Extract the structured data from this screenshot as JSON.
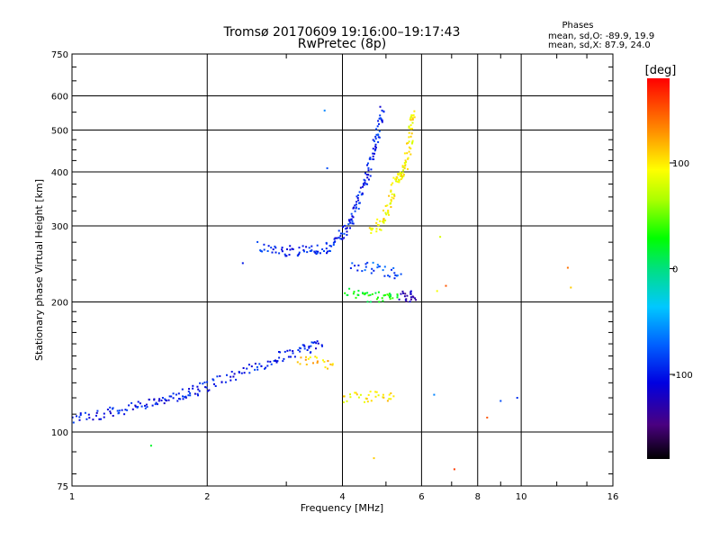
{
  "chart_data": {
    "type": "scatter",
    "title": "Tromsø 20170609  19:16:00–19:17:43",
    "subtitle": "RwPretec (8p)",
    "xlabel": "Frequency [MHz]",
    "ylabel": "Stationary phase Virtual Height [km]",
    "x_scale": "log",
    "y_scale": "log",
    "xlim": [
      1,
      16
    ],
    "ylim": [
      75,
      750
    ],
    "x_ticks": [
      1,
      2,
      4,
      6,
      8,
      10,
      16
    ],
    "x_grid": [
      1,
      2,
      4,
      6,
      8,
      10
    ],
    "y_ticks": [
      75,
      100,
      200,
      300,
      400,
      500,
      600,
      750
    ],
    "grid": true,
    "stats": {
      "title": "Phases",
      "line_o": "mean, sd,O: -89.9, 19.9",
      "line_x": "mean, sd,X:  87.9, 24.0"
    },
    "colorbar": {
      "label": "[deg]",
      "range": [
        -180,
        180
      ],
      "ticks": [
        100,
        0,
        -100
      ],
      "placement": "right"
    },
    "traces": [
      {
        "points": [
          [
            1.0,
            107
          ],
          [
            1.1,
            109
          ],
          [
            1.2,
            111
          ],
          [
            1.3,
            113
          ],
          [
            1.4,
            115
          ],
          [
            1.5,
            117
          ],
          [
            1.6,
            119
          ],
          [
            1.7,
            121
          ],
          [
            1.8,
            123
          ],
          [
            1.9,
            125
          ],
          [
            2.0,
            128
          ],
          [
            2.2,
            133
          ],
          [
            2.4,
            137
          ],
          [
            2.6,
            142
          ],
          [
            2.8,
            147
          ],
          [
            3.0,
            151
          ],
          [
            3.2,
            154
          ],
          [
            3.4,
            157
          ],
          [
            3.6,
            159
          ]
        ],
        "phase": -100
      },
      {
        "points": [
          [
            2.6,
            268
          ],
          [
            2.8,
            264
          ],
          [
            3.0,
            262
          ],
          [
            3.2,
            262
          ],
          [
            3.4,
            263
          ],
          [
            3.6,
            266
          ],
          [
            3.8,
            271
          ],
          [
            3.95,
            281
          ],
          [
            4.05,
            292
          ],
          [
            4.15,
            306
          ],
          [
            4.25,
            322
          ],
          [
            4.35,
            342
          ],
          [
            4.45,
            365
          ],
          [
            4.55,
            390
          ],
          [
            4.62,
            420
          ],
          [
            4.7,
            450
          ],
          [
            4.78,
            480
          ],
          [
            4.85,
            520
          ],
          [
            4.9,
            555
          ]
        ],
        "phase": -95
      },
      {
        "points": [
          [
            4.0,
            120
          ],
          [
            4.4,
            120
          ],
          [
            4.8,
            121
          ],
          [
            5.2,
            121
          ]
        ],
        "phase": 100
      },
      {
        "points": [
          [
            4.6,
            296
          ],
          [
            4.8,
            300
          ],
          [
            4.95,
            310
          ],
          [
            5.05,
            330
          ],
          [
            5.15,
            355
          ],
          [
            5.25,
            380
          ],
          [
            5.35,
            390
          ],
          [
            5.45,
            400
          ],
          [
            5.55,
            420
          ],
          [
            5.62,
            455
          ],
          [
            5.68,
            490
          ],
          [
            5.72,
            520
          ],
          [
            5.74,
            540
          ]
        ],
        "phase": 95
      },
      {
        "points": [
          [
            4.1,
            210
          ],
          [
            4.4,
            206
          ],
          [
            4.7,
            205
          ],
          [
            5.0,
            205
          ],
          [
            5.3,
            205
          ]
        ],
        "phase": 25
      },
      {
        "points": [
          [
            4.2,
            245
          ],
          [
            4.6,
            240
          ],
          [
            5.0,
            236
          ],
          [
            5.4,
            232
          ]
        ],
        "phase": -80
      },
      {
        "points": [
          [
            3.2,
            148
          ],
          [
            3.5,
            145
          ],
          [
            3.8,
            143
          ]
        ],
        "phase": 110
      },
      {
        "points": [
          [
            5.4,
            206
          ],
          [
            5.6,
            206
          ],
          [
            5.8,
            204
          ]
        ],
        "phase": -130
      }
    ],
    "isolated_points": [
      {
        "x": 1.5,
        "y": 93,
        "phase": 20
      },
      {
        "x": 4.7,
        "y": 87,
        "phase": 110
      },
      {
        "x": 6.6,
        "y": 283,
        "phase": 80
      },
      {
        "x": 6.5,
        "y": 212,
        "phase": 90
      },
      {
        "x": 6.8,
        "y": 218,
        "phase": 150
      },
      {
        "x": 7.1,
        "y": 82,
        "phase": 160
      },
      {
        "x": 8.4,
        "y": 108,
        "phase": 150
      },
      {
        "x": 9.0,
        "y": 118,
        "phase": -80
      },
      {
        "x": 9.8,
        "y": 120,
        "phase": -90
      },
      {
        "x": 6.4,
        "y": 122,
        "phase": -60
      },
      {
        "x": 12.7,
        "y": 240,
        "phase": 140
      },
      {
        "x": 12.9,
        "y": 216,
        "phase": 110
      },
      {
        "x": 3.65,
        "y": 555,
        "phase": -60
      },
      {
        "x": 3.7,
        "y": 408,
        "phase": -80
      },
      {
        "x": 2.4,
        "y": 246,
        "phase": -100
      }
    ]
  }
}
